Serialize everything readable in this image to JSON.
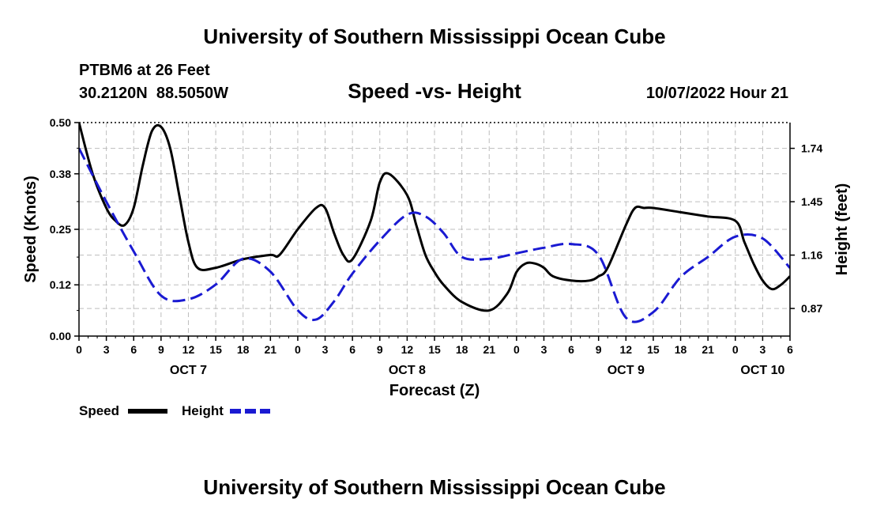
{
  "header": {
    "title": "University of Southern Mississippi Ocean Cube",
    "station": "PTBM6 at 26 Feet",
    "coords": "30.2120N  88.5050W",
    "subtitle": "Speed -vs- Height",
    "datetime": "10/07/2022 Hour 21"
  },
  "footer": {
    "title": "University of Southern Mississippi Ocean Cube"
  },
  "colors": {
    "speed": "#000000",
    "height": "#1a1ad2",
    "grid": "#bdbdbd"
  },
  "chart_data": {
    "type": "line",
    "title": "Speed -vs- Height",
    "xlabel": "Forecast (Z)",
    "ylabel": "Speed (Knots)",
    "y2label": "Height (feet)",
    "xlim": [
      0,
      78
    ],
    "ylim": [
      0,
      0.5
    ],
    "y2lim": [
      0.72,
      1.88
    ],
    "grid": true,
    "x_tick_positions": [
      0,
      3,
      6,
      9,
      12,
      15,
      18,
      21,
      24,
      27,
      30,
      33,
      36,
      39,
      42,
      45,
      48,
      51,
      54,
      57,
      60,
      63,
      66,
      69,
      72,
      75,
      78
    ],
    "x_tick_labels": [
      "0",
      "3",
      "6",
      "9",
      "12",
      "15",
      "18",
      "21",
      "0",
      "3",
      "6",
      "9",
      "12",
      "15",
      "18",
      "21",
      "0",
      "3",
      "6",
      "9",
      "12",
      "15",
      "18",
      "21",
      "0",
      "3",
      "6"
    ],
    "y_ticks": [
      0.0,
      0.12,
      0.25,
      0.38,
      0.5
    ],
    "y_tick_labels": [
      "0.00",
      "0.12",
      "0.25",
      "0.38",
      "0.50"
    ],
    "y2_ticks": [
      0.87,
      1.16,
      1.45,
      1.74
    ],
    "y2_tick_labels": [
      "0.87",
      "1.16",
      "1.45",
      "1.74"
    ],
    "day_labels": [
      {
        "x": 12,
        "label": "OCT 7"
      },
      {
        "x": 36,
        "label": "OCT 8"
      },
      {
        "x": 60,
        "label": "OCT 9"
      },
      {
        "x": 75,
        "label": "OCT 10"
      }
    ],
    "series": [
      {
        "name": "Speed",
        "axis": "left",
        "style": "solid",
        "x": [
          0,
          1.5,
          3,
          4,
          5,
          6,
          7,
          8,
          9,
          10,
          11,
          12,
          13,
          15,
          18,
          21,
          22,
          24,
          26,
          27,
          28,
          29,
          30,
          32,
          33,
          34,
          36,
          37,
          38,
          39,
          40,
          42,
          45,
          47,
          48,
          49,
          50,
          51,
          52,
          54,
          56,
          57,
          58,
          60,
          61,
          62,
          63,
          66,
          69,
          72,
          73,
          74,
          75,
          76,
          77,
          78
        ],
        "y": [
          0.5,
          0.38,
          0.3,
          0.27,
          0.26,
          0.3,
          0.4,
          0.48,
          0.49,
          0.44,
          0.33,
          0.22,
          0.16,
          0.16,
          0.18,
          0.19,
          0.19,
          0.25,
          0.3,
          0.3,
          0.24,
          0.19,
          0.18,
          0.27,
          0.36,
          0.38,
          0.33,
          0.26,
          0.19,
          0.15,
          0.12,
          0.08,
          0.06,
          0.1,
          0.15,
          0.17,
          0.17,
          0.16,
          0.14,
          0.13,
          0.13,
          0.14,
          0.16,
          0.26,
          0.3,
          0.3,
          0.3,
          0.29,
          0.28,
          0.27,
          0.22,
          0.17,
          0.13,
          0.11,
          0.12,
          0.14
        ]
      },
      {
        "name": "Height",
        "axis": "right",
        "style": "dashed",
        "x": [
          0,
          3,
          6,
          9,
          12,
          15,
          18,
          21,
          24,
          26,
          28,
          30,
          33,
          36,
          38,
          40,
          42,
          45,
          48,
          51,
          54,
          57,
          60,
          63,
          66,
          69,
          72,
          75,
          78
        ],
        "y": [
          1.74,
          1.45,
          1.18,
          0.94,
          0.92,
          1.0,
          1.14,
          1.07,
          0.86,
          0.81,
          0.91,
          1.06,
          1.24,
          1.38,
          1.37,
          1.28,
          1.15,
          1.14,
          1.17,
          1.2,
          1.22,
          1.16,
          0.82,
          0.85,
          1.04,
          1.15,
          1.26,
          1.25,
          1.09
        ]
      }
    ],
    "legend": {
      "placement": "bottom-left",
      "entries": [
        "Speed",
        "Height"
      ]
    }
  }
}
